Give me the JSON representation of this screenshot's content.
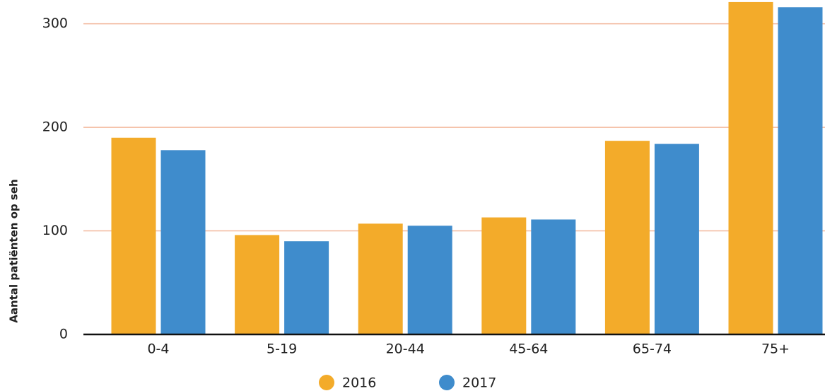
{
  "chart_data": {
    "type": "bar",
    "y_label": "Aantal patiënten op seh",
    "categories": [
      "0-4",
      "5-19",
      "20-44",
      "45-64",
      "65-74",
      "75+"
    ],
    "series": [
      {
        "name": "2016",
        "color": "#f3ab2a",
        "values": [
          190,
          96,
          107,
          113,
          187,
          321
        ]
      },
      {
        "name": "2017",
        "color": "#3f8ccc",
        "values": [
          178,
          90,
          105,
          111,
          184,
          316
        ]
      }
    ],
    "ylim": [
      0,
      323
    ],
    "yticks": [
      0,
      100,
      200,
      300
    ],
    "grid": true,
    "grid_color": "#f2b89c"
  }
}
